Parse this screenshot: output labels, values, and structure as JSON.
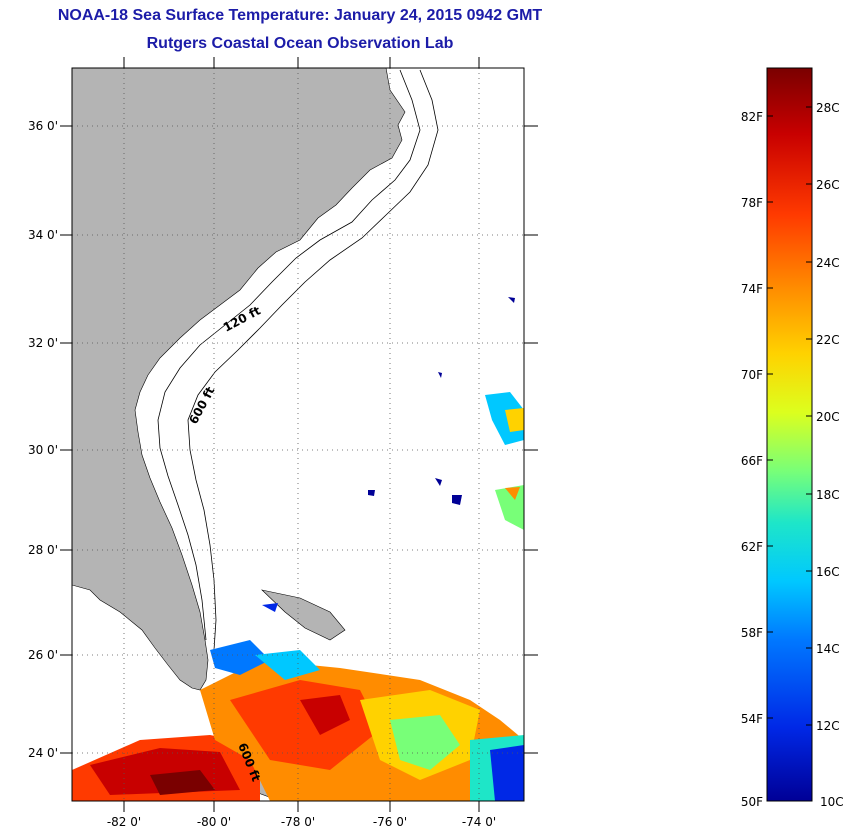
{
  "header": {
    "title": "NOAA-18 Sea Surface Temperature:  January 24, 2015 0942 GMT",
    "subtitle": "Rutgers Coastal Ocean Observation Lab"
  },
  "map": {
    "lat_labels": [
      "36 0'",
      "34 0'",
      "32 0'",
      "30 0'",
      "28 0'",
      "26 0'",
      "24 0'"
    ],
    "lon_labels": [
      "-82 0'",
      "-80 0'",
      "-78 0'",
      "-76 0'",
      "-74 0'"
    ],
    "contour_labels": [
      "120 ft",
      "600 ft",
      "600 ft"
    ]
  },
  "colorbar": {
    "f_labels": [
      "82F",
      "78F",
      "74F",
      "70F",
      "66F",
      "62F",
      "58F",
      "54F",
      "50F"
    ],
    "c_labels": [
      "28C",
      "26C",
      "24C",
      "22C",
      "20C",
      "18C",
      "16C",
      "14C",
      "12C",
      "10C"
    ],
    "colors": [
      "#7a0000",
      "#c80000",
      "#ff3a00",
      "#ff8c00",
      "#ffd200",
      "#dcff1e",
      "#78ff78",
      "#1ee6c8",
      "#00c8ff",
      "#0078ff",
      "#0028e6",
      "#000096"
    ]
  },
  "colors": {
    "land": "#b4b4b4",
    "title": "#1c1ca8"
  }
}
